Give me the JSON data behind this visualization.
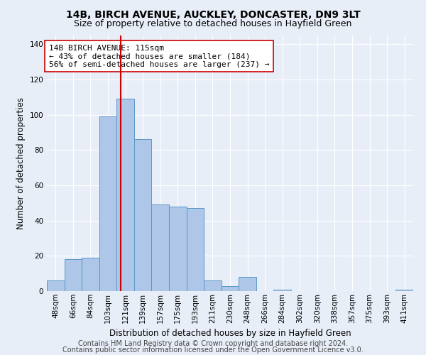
{
  "title1": "14B, BIRCH AVENUE, AUCKLEY, DONCASTER, DN9 3LT",
  "title2": "Size of property relative to detached houses in Hayfield Green",
  "xlabel": "Distribution of detached houses by size in Hayfield Green",
  "ylabel": "Number of detached properties",
  "footnote1": "Contains HM Land Registry data © Crown copyright and database right 2024.",
  "footnote2": "Contains public sector information licensed under the Open Government Licence v3.0.",
  "annotation_line1": "14B BIRCH AVENUE: 115sqm",
  "annotation_line2": "← 43% of detached houses are smaller (184)",
  "annotation_line3": "56% of semi-detached houses are larger (237) →",
  "bar_labels": [
    "48sqm",
    "66sqm",
    "84sqm",
    "103sqm",
    "121sqm",
    "139sqm",
    "157sqm",
    "175sqm",
    "193sqm",
    "211sqm",
    "230sqm",
    "248sqm",
    "266sqm",
    "284sqm",
    "302sqm",
    "320sqm",
    "338sqm",
    "357sqm",
    "375sqm",
    "393sqm",
    "411sqm"
  ],
  "bar_values": [
    6,
    18,
    19,
    99,
    109,
    86,
    49,
    48,
    47,
    6,
    3,
    8,
    0,
    1,
    0,
    0,
    0,
    0,
    0,
    0,
    1
  ],
  "bar_color": "#aec6e8",
  "bar_edge_color": "#5a96c8",
  "redline_x": 3.72,
  "redline_color": "#cc0000",
  "ylim": [
    0,
    145
  ],
  "yticks": [
    0,
    20,
    40,
    60,
    80,
    100,
    120,
    140
  ],
  "background_color": "#e8eef8",
  "plot_background": "#e8eef8",
  "grid_color": "#ffffff",
  "annotation_box_color": "#ffffff",
  "annotation_box_edge": "#cc0000",
  "title1_fontsize": 10,
  "title2_fontsize": 9,
  "xlabel_fontsize": 8.5,
  "ylabel_fontsize": 8.5,
  "annotation_fontsize": 8,
  "footnote_fontsize": 7,
  "tick_fontsize": 7.5
}
